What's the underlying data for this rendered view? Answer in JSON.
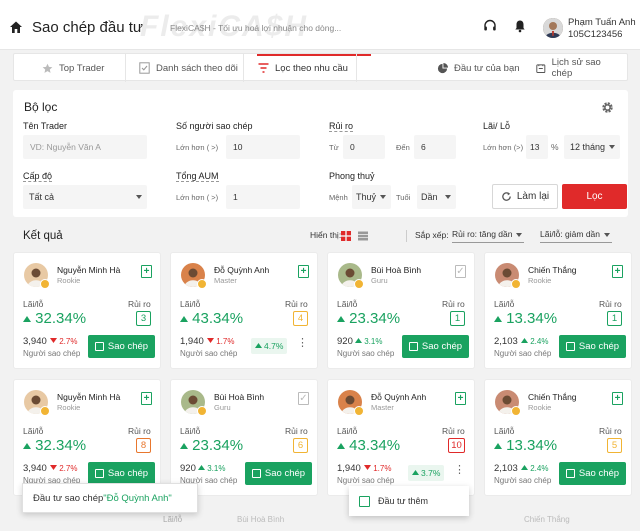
{
  "header": {
    "title": "Sao chép đầu tư",
    "brand": "FlexiCA$H",
    "slogan": "FlexiCA$H - Tối ưu hoá lợi nhuận cho dòng...",
    "user_name": "Phạm Tuấn Anh",
    "user_id": "105C123456"
  },
  "tabs": [
    {
      "label": "Top Trader",
      "icon": "star-icon"
    },
    {
      "label": "Danh sách theo dõi",
      "icon": "checklist-icon"
    },
    {
      "label": "Lọc theo nhu cầu",
      "icon": "filter-icon",
      "active": true
    },
    {
      "label": "Đầu tư của bạn",
      "icon": "pie-chart-icon"
    },
    {
      "label": "Lịch sử sao chép",
      "icon": "history-icon"
    }
  ],
  "filter": {
    "title": "Bộ lọc",
    "trader_label": "Tên Trader",
    "trader_placeholder": "VD: Nguyễn Văn A",
    "copiers_label": "Số người sao chép",
    "copiers_prefix": "Lớn hơn ( >)",
    "copiers_value": "10",
    "risk_label": "Rủi ro",
    "risk_from_label": "Từ",
    "risk_from": "0",
    "risk_to_label": "Đến",
    "risk_to": "6",
    "pl_label": "Lãi/ Lỗ",
    "pl_prefix": "Lớn hơn (>)",
    "pl_value": "13",
    "pl_unit": "%",
    "pl_period": "12 tháng",
    "level_label": "Cấp độ",
    "level_value": "Tất cả",
    "aum_label": "Tổng AUM",
    "aum_prefix": "Lớn hơn ( >)",
    "aum_value": "1",
    "feng_label": "Phong thuỷ",
    "menh_label": "Mệnh",
    "menh_value": "Thuỷ",
    "tuoi_label": "Tuổi",
    "tuoi_value": "Dần",
    "reset_label": "Làm lại",
    "submit_label": "Lọc"
  },
  "results": {
    "title": "Kết quả",
    "show_label": "Hiển thị:",
    "sort_label": "Sắp xếp:",
    "sort_risk": "Rủi ro: tăng dần",
    "sort_pl": "Lãi/lỗ: giảm dần"
  },
  "cards": [
    {
      "name": "Nguyễn Minh Hà",
      "level": "Rookie",
      "followed": true,
      "pl_label": "Lãi/lỗ",
      "risk_label": "Rủi ro",
      "pl": "32.34%",
      "risk": "3",
      "risk_color": "#1aa260",
      "copiers": "3,940",
      "change": "2.7%",
      "change_dir": "down",
      "copiers_sub": "Người sao chép",
      "copy_label": "Sao chép",
      "avatar_color": "#e8c9a4"
    },
    {
      "name": "Đỗ Quỳnh Anh",
      "level": "Master",
      "followed": true,
      "pl_label": "Lãi/lỗ",
      "risk_label": "Rủi ro",
      "pl": "43.34%",
      "risk": "4",
      "risk_color": "#f1b434",
      "copiers": "1,940",
      "change": "1.7%",
      "change_dir": "down",
      "copiers_sub": "Người sao chép",
      "pill": "4.7%",
      "avatar_color": "#d9824a"
    },
    {
      "name": "Bùi Hoà Bình",
      "level": "Guru",
      "followed": false,
      "pl_label": "Lãi/lỗ",
      "risk_label": "Rủi ro",
      "pl": "23.34%",
      "risk": "1",
      "risk_color": "#1aa260",
      "copiers": "920",
      "change": "3.1%",
      "change_dir": "up",
      "copiers_sub": "Người sao chép",
      "copy_label": "Sao chép",
      "avatar_color": "#a9b98a"
    },
    {
      "name": "Chiến Thắng",
      "level": "Rookie",
      "followed": true,
      "pl_label": "Lãi/lỗ",
      "risk_label": "Rủi ro",
      "pl": "13.34%",
      "risk": "1",
      "risk_color": "#1aa260",
      "copiers": "2,103",
      "change": "2.4%",
      "change_dir": "up",
      "copiers_sub": "Người sao chép",
      "copy_label": "Sao chép",
      "avatar_color": "#c98b73"
    },
    {
      "name": "Nguyễn Minh Hà",
      "level": "Rookie",
      "followed": true,
      "pl_label": "Lãi/lỗ",
      "risk_label": "Rủi ro",
      "pl": "32.34%",
      "risk": "8",
      "risk_color": "#e8772e",
      "copiers": "3,940",
      "change": "2.7%",
      "change_dir": "down",
      "copiers_sub": "Người sao chép",
      "copy_label": "Sao chép",
      "avatar_color": "#e8c9a4"
    },
    {
      "name": "Bùi Hoà Bình",
      "level": "Guru",
      "followed": false,
      "pl_label": "Lãi/lỗ",
      "risk_label": "Rủi ro",
      "pl": "23.34%",
      "risk": "6",
      "risk_color": "#f1b434",
      "copiers": "920",
      "change": "3.1%",
      "change_dir": "up",
      "copiers_sub": "Người sao chép",
      "copy_label": "Sao chép",
      "avatar_color": "#a9b98a"
    },
    {
      "name": "Đỗ Quỳnh Anh",
      "level": "Master",
      "followed": true,
      "pl_label": "Lãi/lỗ",
      "risk_label": "Rủi ro",
      "pl": "43.34%",
      "risk": "10",
      "risk_color": "#e02a2a",
      "copiers": "1,940",
      "change": "1.7%",
      "change_dir": "down",
      "copiers_sub": "Người sao chép",
      "pill": "3.7%",
      "avatar_color": "#d9824a"
    },
    {
      "name": "Chiến Thắng",
      "level": "Rookie",
      "followed": true,
      "pl_label": "Lãi/lỗ",
      "risk_label": "Rủi ro",
      "pl": "13.34%",
      "risk": "5",
      "risk_color": "#f1b434",
      "copiers": "2,103",
      "change": "2.4%",
      "change_dir": "up",
      "copiers_sub": "Người sao chép",
      "copy_label": "Sao chép",
      "avatar_color": "#c98b73"
    }
  ],
  "tooltip": {
    "prefix": "Đầu tư sao chép ",
    "name": "\"Đỗ Quỳnh Anh\""
  },
  "context_menu": {
    "label": "Đầu tư thêm"
  },
  "ghost_row": [
    "Lãi/lỗ",
    "Bùi Hoà Bình",
    "Chiến Thắng"
  ],
  "colors": {
    "accent": "#e02a2a",
    "green": "#1aa260",
    "down": "#e02a2a"
  }
}
